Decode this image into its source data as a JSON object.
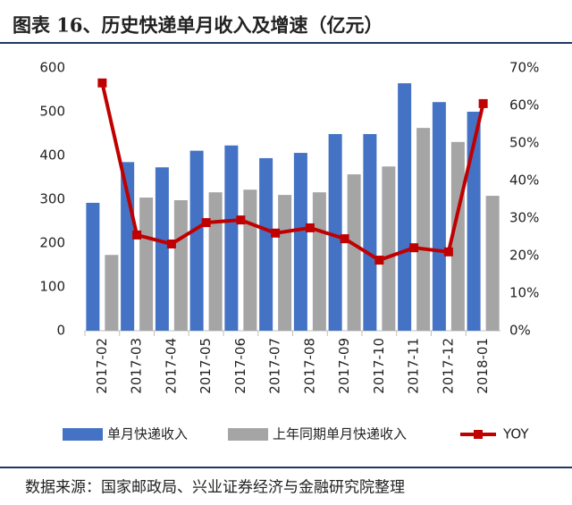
{
  "chart_data": {
    "type": "bar",
    "title": "图表 16、历史快递单月收入及增速（亿元）",
    "source": "数据来源：国家邮政局、兴业证券经济与金融研究院整理",
    "categories": [
      "2017-02",
      "2017-03",
      "2017-04",
      "2017-05",
      "2017-06",
      "2017-07",
      "2017-08",
      "2017-09",
      "2017-10",
      "2017-11",
      "2017-12",
      "2018-01"
    ],
    "series": [
      {
        "name": "单月快递收入",
        "color": "#4472c4",
        "values": [
          292,
          385,
          373,
          411,
          423,
          394,
          406,
          449,
          449,
          565,
          522,
          500
        ]
      },
      {
        "name": "上年同期单月快递收入",
        "color": "#a5a5a5",
        "values": [
          173,
          304,
          298,
          316,
          322,
          310,
          316,
          357,
          375,
          463,
          431,
          308
        ]
      },
      {
        "name": "YOY",
        "color": "#c00000",
        "type": "line",
        "axis": "y2",
        "values": [
          66,
          25.5,
          23.1,
          28.8,
          29.5,
          26,
          27.4,
          24.5,
          18.8,
          22.1,
          21,
          60.5
        ]
      }
    ],
    "ylim": [
      0,
      600
    ],
    "yticks": [
      0,
      100,
      200,
      300,
      400,
      500,
      600
    ],
    "y2lim": [
      0,
      70
    ],
    "y2ticks": [
      {
        "value": 0,
        "label": "0%"
      },
      {
        "value": 10,
        "label": "10%"
      },
      {
        "value": 20,
        "label": "20%"
      },
      {
        "value": 30,
        "label": "30%"
      },
      {
        "value": 40,
        "label": "40%"
      },
      {
        "value": 50,
        "label": "50%"
      },
      {
        "value": 60,
        "label": "60%"
      },
      {
        "value": 70,
        "label": "70%"
      }
    ],
    "grid": false
  }
}
